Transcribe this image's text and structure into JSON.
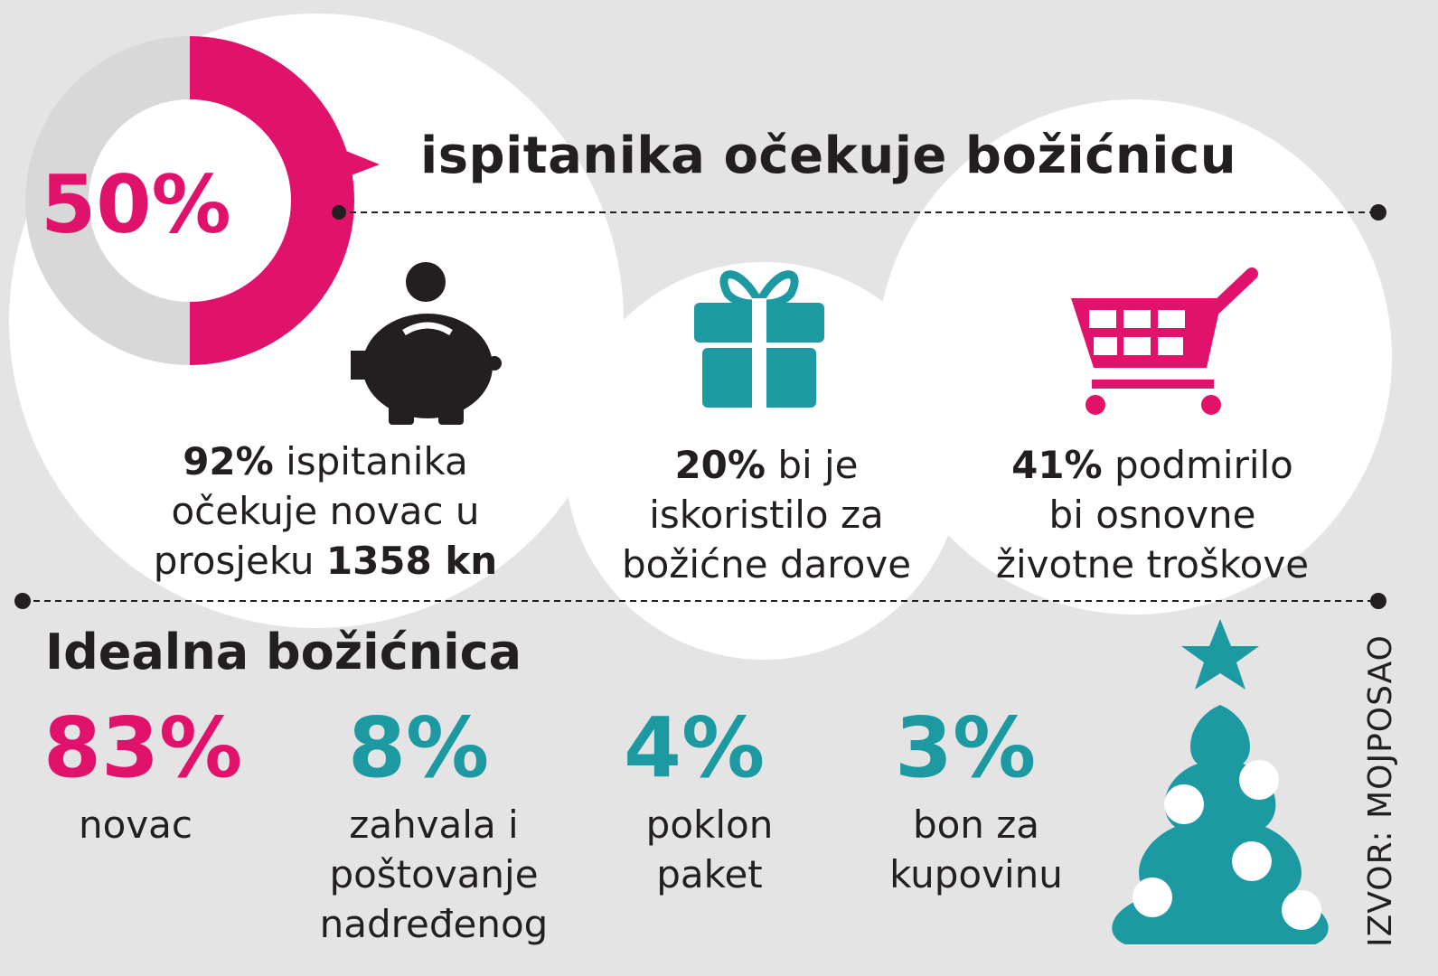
{
  "colors": {
    "pink": "#e0126b",
    "teal": "#1d9aa1",
    "gray": "#d8d8d8",
    "dark": "#231f20"
  },
  "header": {
    "percent": "50%",
    "title": "ispitanika očekuje božićnicu"
  },
  "stats": [
    {
      "icon": "piggy-bank-icon",
      "value": "92%",
      "line1": " ispitanika",
      "line2": "očekuje novac u",
      "line3_pre": "prosjeku ",
      "line3_bold": "1358 kn"
    },
    {
      "icon": "gift-icon",
      "value": "20%",
      "line1": " bi je",
      "line2": "iskoristilo za",
      "line3_pre": "božićne darove",
      "line3_bold": ""
    },
    {
      "icon": "shopping-cart-icon",
      "value": "41%",
      "line1": " podmirilo",
      "line2": "bi osnovne",
      "line3_pre": "životne troškove",
      "line3_bold": ""
    }
  ],
  "ideal": {
    "title": "Idealna božićnica",
    "items": [
      {
        "value": "83%",
        "l1": "novac",
        "l2": "",
        "l3": ""
      },
      {
        "value": "8%",
        "l1": "zahvala i",
        "l2": "poštovanje",
        "l3": "nadređenog"
      },
      {
        "value": "4%",
        "l1": "poklon",
        "l2": "paket",
        "l3": ""
      },
      {
        "value": "3%",
        "l1": "bon za",
        "l2": "kupovinu",
        "l3": ""
      }
    ]
  },
  "source": "IZVOR: MOJPOSAO",
  "chart_data": {
    "type": "pie",
    "title": "ispitanika očekuje božićnicu",
    "donut": {
      "value": 50,
      "max": 100,
      "label": "50%"
    },
    "stats": [
      {
        "label": "očekuje novac",
        "value": 92
      },
      {
        "label": "za božićne darove",
        "value": 20
      },
      {
        "label": "osnovni životni troškovi",
        "value": 41
      }
    ],
    "categories": [
      "novac",
      "zahvala i poštovanje nadređenog",
      "poklon paket",
      "bon za kupovinu"
    ],
    "values": [
      83,
      8,
      4,
      3
    ]
  }
}
